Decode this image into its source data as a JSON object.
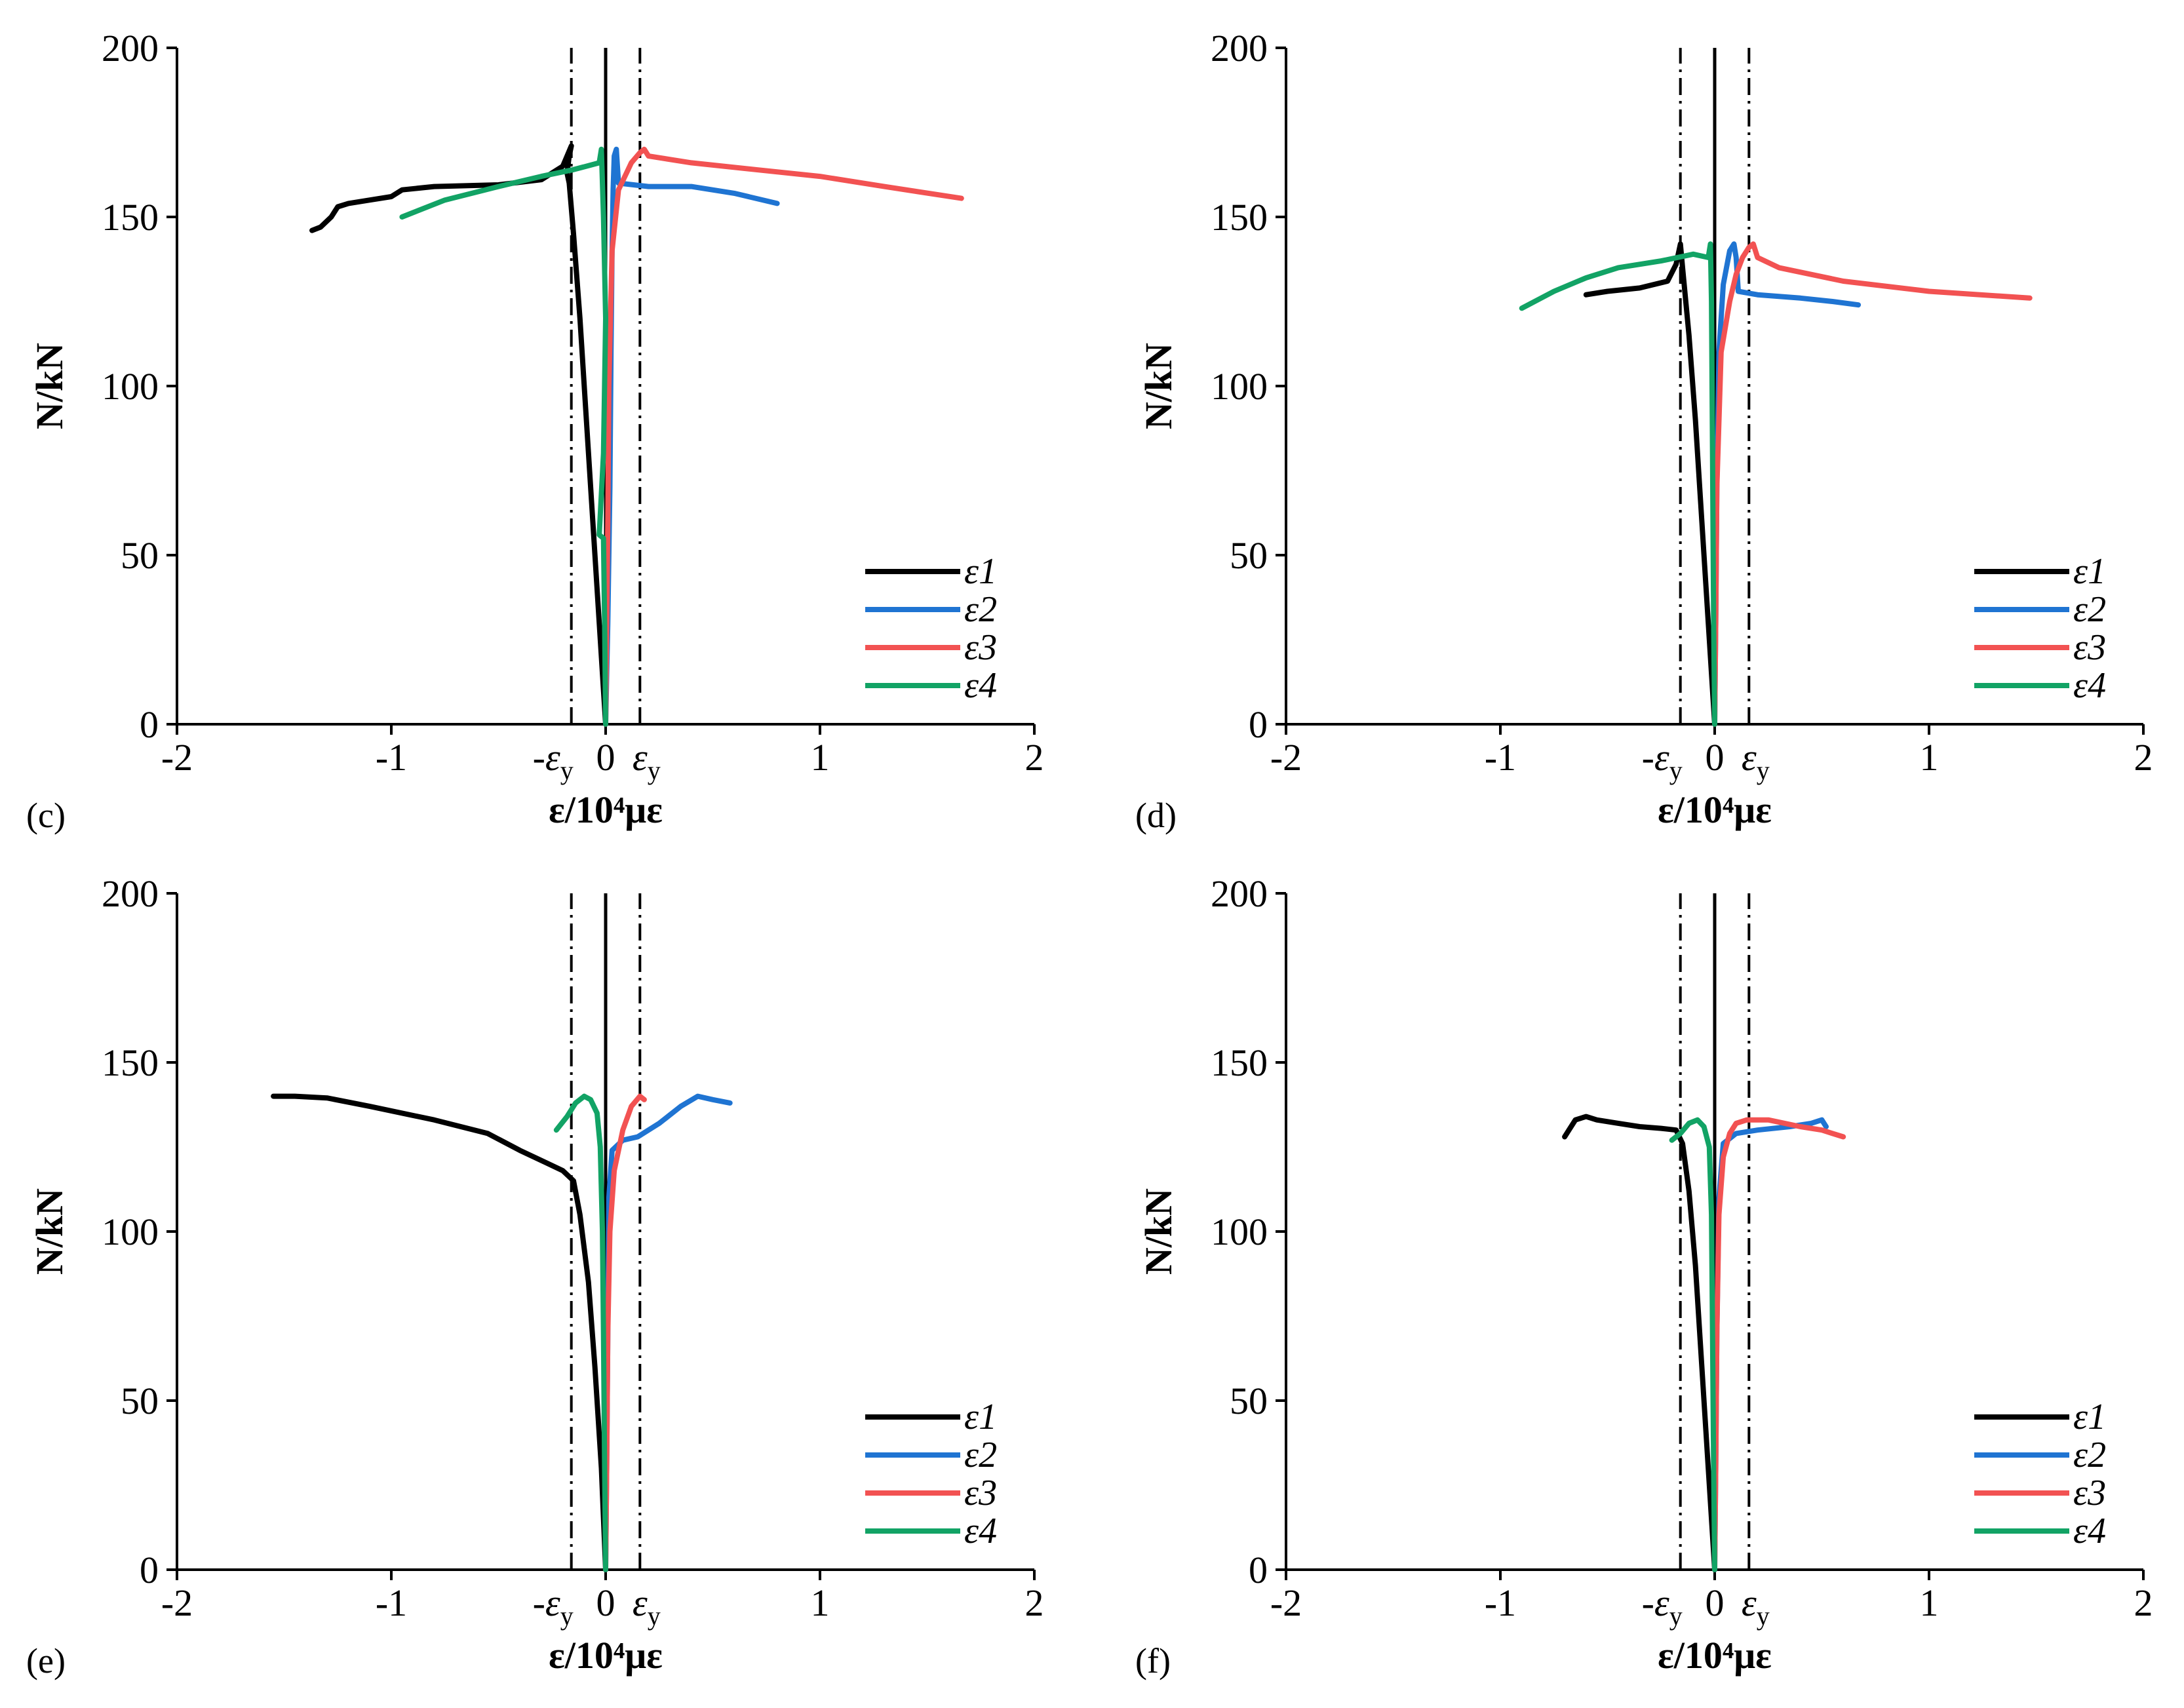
{
  "colors": {
    "eps1": "#000000",
    "eps2": "#1f74d2",
    "eps3": "#f25252",
    "eps4": "#12a365"
  },
  "chart_data": [
    {
      "type": "line",
      "panel": "(c)",
      "xlabel": "ε/10⁴με",
      "ylabel": "N/kN",
      "xlim": [
        -2,
        2
      ],
      "ylim": [
        0,
        200
      ],
      "x_ticks": [
        "-2",
        "-1",
        "1",
        "2"
      ],
      "y_ticks": [
        "0",
        "50",
        "100",
        "150",
        "200"
      ],
      "eps_y": 0.16,
      "eps_y_labels": [
        "-ε",
        "0",
        "ε"
      ],
      "eps_y_sub": "y",
      "legend_position": "bottom-right",
      "series": [
        {
          "name": "ε1",
          "color_key": "eps1",
          "points": [
            [
              0,
              0
            ],
            [
              -0.03,
              30
            ],
            [
              -0.06,
              60
            ],
            [
              -0.09,
              90
            ],
            [
              -0.12,
              120
            ],
            [
              -0.15,
              145
            ],
            [
              -0.17,
              160
            ],
            [
              -0.18,
              163
            ],
            [
              -0.17,
              168
            ],
            [
              -0.16,
              171
            ],
            [
              -0.2,
              165
            ],
            [
              -0.3,
              161
            ],
            [
              -0.5,
              159.5
            ],
            [
              -0.8,
              159
            ],
            [
              -0.95,
              158
            ],
            [
              -1.0,
              156
            ],
            [
              -1.1,
              155
            ],
            [
              -1.2,
              154
            ],
            [
              -1.25,
              153
            ],
            [
              -1.28,
              150
            ],
            [
              -1.33,
              147
            ],
            [
              -1.37,
              146
            ]
          ]
        },
        {
          "name": "ε2",
          "color_key": "eps2",
          "points": [
            [
              0,
              0
            ],
            [
              0.01,
              30
            ],
            [
              0.02,
              70
            ],
            [
              0.025,
              110
            ],
            [
              0.03,
              140
            ],
            [
              0.035,
              158
            ],
            [
              0.04,
              168
            ],
            [
              0.05,
              170
            ],
            [
              0.06,
              160
            ],
            [
              0.2,
              159
            ],
            [
              0.4,
              159
            ],
            [
              0.6,
              157
            ],
            [
              0.8,
              154
            ]
          ]
        },
        {
          "name": "ε3",
          "color_key": "eps3",
          "points": [
            [
              0,
              0
            ],
            [
              0.005,
              30
            ],
            [
              0.01,
              60
            ],
            [
              0.015,
              100
            ],
            [
              0.03,
              140
            ],
            [
              0.06,
              158
            ],
            [
              0.12,
              166
            ],
            [
              0.16,
              169
            ],
            [
              0.18,
              170
            ],
            [
              0.2,
              168
            ],
            [
              0.4,
              166
            ],
            [
              0.7,
              164
            ],
            [
              1.0,
              162
            ],
            [
              1.3,
              159
            ],
            [
              1.66,
              155.5
            ]
          ]
        },
        {
          "name": "ε4",
          "color_key": "eps4",
          "points": [
            [
              0,
              0
            ],
            [
              -0.005,
              30
            ],
            [
              -0.01,
              55
            ],
            [
              -0.03,
              56
            ],
            [
              -0.01,
              80
            ],
            [
              0,
              120
            ],
            [
              -0.01,
              150
            ],
            [
              -0.02,
              170
            ],
            [
              -0.03,
              166
            ],
            [
              -0.15,
              164
            ],
            [
              -0.3,
              162
            ],
            [
              -0.5,
              159
            ],
            [
              -0.75,
              155
            ],
            [
              -0.95,
              150
            ]
          ]
        }
      ]
    },
    {
      "type": "line",
      "panel": "(d)",
      "xlabel": "ε/10⁴με",
      "ylabel": "N/kN",
      "xlim": [
        -2,
        2
      ],
      "ylim": [
        0,
        200
      ],
      "x_ticks": [
        "-2",
        "-1",
        "1",
        "2"
      ],
      "y_ticks": [
        "0",
        "50",
        "100",
        "150",
        "200"
      ],
      "eps_y": 0.16,
      "eps_y_labels": [
        "-ε",
        "0",
        "ε"
      ],
      "eps_y_sub": "y",
      "legend_position": "bottom-right",
      "series": [
        {
          "name": "ε1",
          "color_key": "eps1",
          "points": [
            [
              0,
              0
            ],
            [
              -0.03,
              30
            ],
            [
              -0.06,
              60
            ],
            [
              -0.09,
              90
            ],
            [
              -0.12,
              115
            ],
            [
              -0.15,
              135
            ],
            [
              -0.16,
              142
            ],
            [
              -0.18,
              136
            ],
            [
              -0.22,
              131
            ],
            [
              -0.35,
              129
            ],
            [
              -0.5,
              128
            ],
            [
              -0.6,
              127
            ]
          ]
        },
        {
          "name": "ε2",
          "color_key": "eps2",
          "points": [
            [
              0,
              0
            ],
            [
              0.005,
              30
            ],
            [
              0.01,
              70
            ],
            [
              0.02,
              110
            ],
            [
              0.04,
              130
            ],
            [
              0.07,
              140
            ],
            [
              0.09,
              142
            ],
            [
              0.1,
              138
            ],
            [
              0.11,
              128
            ],
            [
              0.2,
              127
            ],
            [
              0.4,
              126
            ],
            [
              0.55,
              125
            ],
            [
              0.67,
              124
            ]
          ]
        },
        {
          "name": "ε3",
          "color_key": "eps3",
          "points": [
            [
              0,
              0
            ],
            [
              0.005,
              30
            ],
            [
              0.01,
              70
            ],
            [
              0.03,
              110
            ],
            [
              0.07,
              125
            ],
            [
              0.1,
              133
            ],
            [
              0.13,
              138
            ],
            [
              0.16,
              141
            ],
            [
              0.18,
              142
            ],
            [
              0.2,
              138
            ],
            [
              0.3,
              135
            ],
            [
              0.6,
              131
            ],
            [
              1.0,
              128
            ],
            [
              1.47,
              126
            ]
          ]
        },
        {
          "name": "ε4",
          "color_key": "eps4",
          "points": [
            [
              0,
              0
            ],
            [
              -0.005,
              30
            ],
            [
              -0.01,
              80
            ],
            [
              -0.015,
              125
            ],
            [
              -0.02,
              142
            ],
            [
              -0.03,
              138
            ],
            [
              -0.1,
              139
            ],
            [
              -0.25,
              137
            ],
            [
              -0.45,
              135
            ],
            [
              -0.6,
              132
            ],
            [
              -0.75,
              128
            ],
            [
              -0.9,
              123
            ]
          ]
        }
      ]
    },
    {
      "type": "line",
      "panel": "(e)",
      "xlabel": "ε/10⁴με",
      "ylabel": "N/kN",
      "xlim": [
        -2,
        2
      ],
      "ylim": [
        0,
        200
      ],
      "x_ticks": [
        "-2",
        "-1",
        "1",
        "2"
      ],
      "y_ticks": [
        "0",
        "50",
        "100",
        "150",
        "200"
      ],
      "eps_y": 0.16,
      "eps_y_labels": [
        "-ε",
        "0",
        "ε"
      ],
      "eps_y_sub": "y",
      "legend_position": "bottom-right",
      "series": [
        {
          "name": "ε1",
          "color_key": "eps1",
          "points": [
            [
              0,
              0
            ],
            [
              -0.02,
              30
            ],
            [
              -0.05,
              60
            ],
            [
              -0.08,
              85
            ],
            [
              -0.12,
              105
            ],
            [
              -0.15,
              115
            ],
            [
              -0.2,
              118
            ],
            [
              -0.3,
              121
            ],
            [
              -0.4,
              124
            ],
            [
              -0.55,
              129
            ],
            [
              -0.8,
              133
            ],
            [
              -1.1,
              137
            ],
            [
              -1.3,
              139.5
            ],
            [
              -1.45,
              140
            ],
            [
              -1.55,
              140
            ]
          ]
        },
        {
          "name": "ε2",
          "color_key": "eps2",
          "points": [
            [
              0,
              0
            ],
            [
              0.005,
              30
            ],
            [
              0.01,
              70
            ],
            [
              0.015,
              110
            ],
            [
              0.03,
              124
            ],
            [
              0.08,
              127
            ],
            [
              0.15,
              128
            ],
            [
              0.25,
              132
            ],
            [
              0.35,
              137
            ],
            [
              0.43,
              140
            ],
            [
              0.5,
              139
            ],
            [
              0.58,
              138
            ]
          ]
        },
        {
          "name": "ε3",
          "color_key": "eps3",
          "points": [
            [
              0,
              0
            ],
            [
              0.005,
              30
            ],
            [
              0.01,
              70
            ],
            [
              0.02,
              100
            ],
            [
              0.04,
              118
            ],
            [
              0.08,
              130
            ],
            [
              0.12,
              137
            ],
            [
              0.16,
              140
            ],
            [
              0.18,
              139
            ]
          ]
        },
        {
          "name": "ε4",
          "color_key": "eps4",
          "points": [
            [
              0,
              0
            ],
            [
              -0.005,
              30
            ],
            [
              -0.01,
              70
            ],
            [
              -0.015,
              100
            ],
            [
              -0.025,
              125
            ],
            [
              -0.04,
              135
            ],
            [
              -0.07,
              139
            ],
            [
              -0.1,
              140
            ],
            [
              -0.14,
              138
            ],
            [
              -0.18,
              134
            ],
            [
              -0.23,
              130
            ]
          ]
        }
      ]
    },
    {
      "type": "line",
      "panel": "(f)",
      "xlabel": "ε/10⁴με",
      "ylabel": "N/kN",
      "xlim": [
        -2,
        2
      ],
      "ylim": [
        0,
        200
      ],
      "x_ticks": [
        "-2",
        "-1",
        "1",
        "2"
      ],
      "y_ticks": [
        "0",
        "50",
        "100",
        "150",
        "200"
      ],
      "eps_y": 0.16,
      "eps_y_labels": [
        "-ε",
        "0",
        "ε"
      ],
      "eps_y_sub": "y",
      "legend_position": "bottom-right",
      "series": [
        {
          "name": "ε1",
          "color_key": "eps1",
          "points": [
            [
              0,
              0
            ],
            [
              -0.03,
              30
            ],
            [
              -0.06,
              60
            ],
            [
              -0.09,
              90
            ],
            [
              -0.12,
              112
            ],
            [
              -0.15,
              126
            ],
            [
              -0.18,
              130
            ],
            [
              -0.25,
              130.5
            ],
            [
              -0.35,
              131
            ],
            [
              -0.45,
              132
            ],
            [
              -0.55,
              133
            ],
            [
              -0.6,
              134
            ],
            [
              -0.65,
              133
            ],
            [
              -0.68,
              130
            ],
            [
              -0.7,
              128
            ]
          ]
        },
        {
          "name": "ε2",
          "color_key": "eps2",
          "points": [
            [
              0,
              0
            ],
            [
              0.005,
              30
            ],
            [
              0.01,
              70
            ],
            [
              0.02,
              110
            ],
            [
              0.04,
              126
            ],
            [
              0.1,
              129
            ],
            [
              0.2,
              130
            ],
            [
              0.35,
              131
            ],
            [
              0.45,
              132
            ],
            [
              0.5,
              133
            ],
            [
              0.52,
              131
            ]
          ]
        },
        {
          "name": "ε3",
          "color_key": "eps3",
          "points": [
            [
              0,
              0
            ],
            [
              0.005,
              30
            ],
            [
              0.01,
              70
            ],
            [
              0.02,
              105
            ],
            [
              0.04,
              122
            ],
            [
              0.07,
              129
            ],
            [
              0.1,
              132
            ],
            [
              0.15,
              133
            ],
            [
              0.25,
              133
            ],
            [
              0.4,
              131
            ],
            [
              0.5,
              130
            ],
            [
              0.55,
              129
            ],
            [
              0.6,
              128
            ]
          ]
        },
        {
          "name": "ε4",
          "color_key": "eps4",
          "points": [
            [
              0,
              0
            ],
            [
              -0.005,
              30
            ],
            [
              -0.01,
              70
            ],
            [
              -0.015,
              105
            ],
            [
              -0.025,
              125
            ],
            [
              -0.05,
              131
            ],
            [
              -0.08,
              133
            ],
            [
              -0.12,
              132
            ],
            [
              -0.16,
              129
            ],
            [
              -0.2,
              127
            ]
          ]
        }
      ]
    }
  ]
}
